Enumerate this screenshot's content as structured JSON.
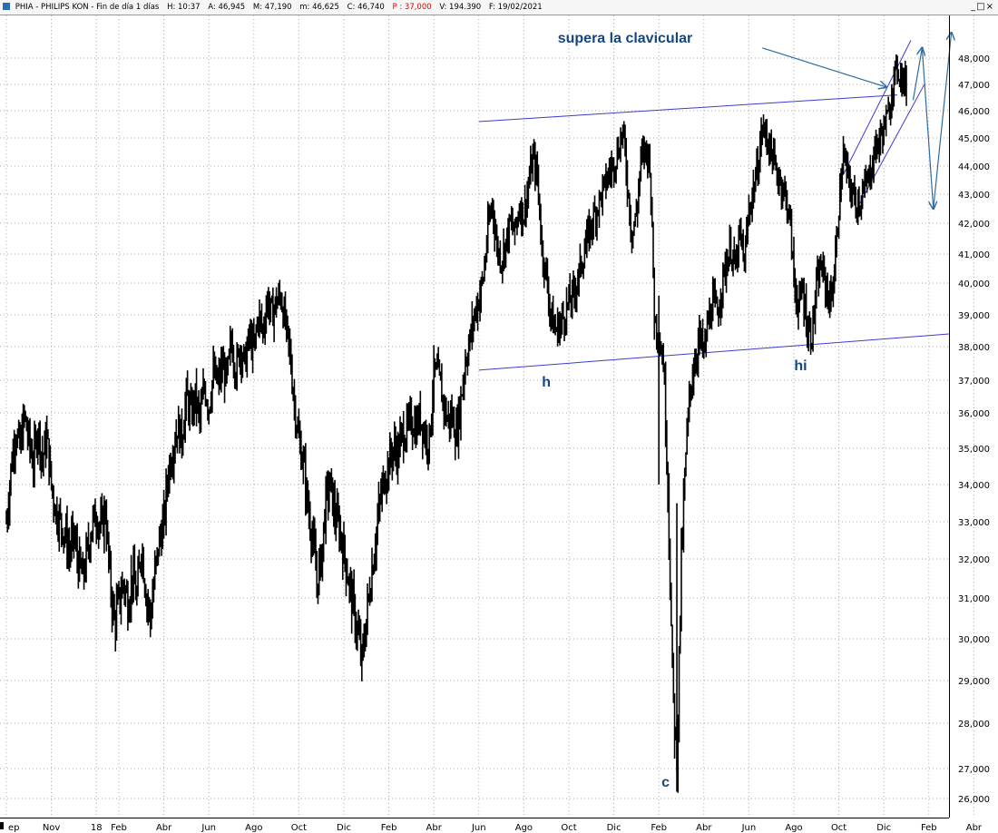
{
  "header": {
    "name": "PHIA - PHILIPS KON - Fin de día 1 días",
    "high": "H: 10:37",
    "open": "A: 46,945",
    "max": "M: 47,190",
    "min": "m: 46,625",
    "close": "C: 46,740",
    "p": "P : 37,000",
    "volume": "V: 194.390",
    "date": "F: 19/02/2021",
    "controls": "_□×"
  },
  "chart_data": {
    "type": "candlestick",
    "title": "",
    "xlabel": "",
    "ylabel": "",
    "ylim": [
      26,
      49
    ],
    "y_ticks": [
      "26,000",
      "27,000",
      "28,000",
      "29,000",
      "30,000",
      "31,000",
      "32,000",
      "33,000",
      "34,000",
      "35,000",
      "36,000",
      "37,000",
      "38,000",
      "39,000",
      "40,000",
      "41,000",
      "42,000",
      "43,000",
      "44,000",
      "45,000",
      "46,000",
      "47,000",
      "48,000"
    ],
    "x_ticks": [
      "Sep",
      "Nov",
      "18",
      "Feb",
      "Abr",
      "Jun",
      "Ago",
      "Oct",
      "Dic",
      "Feb",
      "Abr",
      "Jun",
      "Ago",
      "Oct",
      "Dic",
      "Feb",
      "Abr",
      "Jun",
      "Ago",
      "Oct",
      "Dic",
      "Feb",
      "Abr"
    ],
    "x_label_texts": [
      "ep",
      "Nov",
      "18",
      "Feb",
      "Abr",
      "Jun",
      "Ago",
      "Oct",
      "Dic",
      "Feb",
      "Abr",
      "Jun",
      "Ago",
      "Oct",
      "Dic",
      "Feb",
      "Abr",
      "Jun",
      "Ago",
      "Oct",
      "Dic",
      "Feb",
      "Abr"
    ],
    "x_tick_index": [
      0,
      2,
      4,
      5,
      7,
      9,
      11,
      13,
      15,
      17,
      19,
      21,
      23,
      25,
      27,
      29,
      31,
      33,
      35,
      37,
      39,
      41,
      43
    ],
    "months_span": 44,
    "grid": true,
    "series": [
      {
        "values": [
          [
            0.0,
            33.0
          ],
          [
            0.2,
            34.4
          ],
          [
            0.4,
            35.5
          ],
          [
            0.6,
            35.0
          ],
          [
            0.8,
            35.9
          ],
          [
            1.0,
            35.2
          ],
          [
            1.2,
            34.6
          ],
          [
            1.4,
            35.6
          ],
          [
            1.6,
            34.7
          ],
          [
            1.8,
            35.3
          ],
          [
            2.0,
            34.0
          ],
          [
            2.2,
            33.3
          ],
          [
            2.4,
            33.0
          ],
          [
            2.6,
            32.7
          ],
          [
            2.8,
            32.2
          ],
          [
            3.0,
            32.6
          ],
          [
            3.2,
            31.9
          ],
          [
            3.4,
            31.5
          ],
          [
            3.6,
            32.2
          ],
          [
            3.8,
            32.9
          ],
          [
            4.0,
            33.2
          ],
          [
            4.2,
            32.8
          ],
          [
            4.4,
            33.3
          ],
          [
            4.6,
            31.5
          ],
          [
            4.8,
            30.4
          ],
          [
            5.0,
            30.9
          ],
          [
            5.2,
            31.4
          ],
          [
            5.4,
            30.9
          ],
          [
            5.6,
            31.6
          ],
          [
            5.8,
            31.0
          ],
          [
            6.0,
            32.4
          ],
          [
            6.2,
            31.2
          ],
          [
            6.4,
            30.5
          ],
          [
            6.6,
            31.6
          ],
          [
            6.8,
            32.5
          ],
          [
            7.0,
            33.0
          ],
          [
            7.2,
            34.4
          ],
          [
            7.4,
            35.0
          ],
          [
            7.6,
            35.6
          ],
          [
            7.8,
            35.3
          ],
          [
            8.0,
            36.5
          ],
          [
            8.2,
            36.0
          ],
          [
            8.4,
            36.5
          ],
          [
            8.6,
            35.8
          ],
          [
            8.8,
            36.8
          ],
          [
            9.0,
            36.2
          ],
          [
            9.2,
            37.2
          ],
          [
            9.4,
            36.9
          ],
          [
            9.6,
            37.4
          ],
          [
            9.8,
            37.0
          ],
          [
            10.0,
            38.2
          ],
          [
            10.2,
            37.3
          ],
          [
            10.4,
            38.0
          ],
          [
            10.6,
            37.5
          ],
          [
            10.8,
            38.3
          ],
          [
            11.0,
            37.9
          ],
          [
            11.2,
            39.0
          ],
          [
            11.4,
            38.5
          ],
          [
            11.6,
            39.5
          ],
          [
            11.8,
            39.0
          ],
          [
            12.0,
            39.4
          ],
          [
            12.2,
            39.6
          ],
          [
            12.4,
            38.7
          ],
          [
            12.6,
            37.8
          ],
          [
            12.8,
            36.3
          ],
          [
            13.0,
            35.2
          ],
          [
            13.2,
            34.6
          ],
          [
            13.4,
            33.4
          ],
          [
            13.6,
            32.6
          ],
          [
            13.8,
            31.4
          ],
          [
            14.0,
            32.0
          ],
          [
            14.2,
            33.6
          ],
          [
            14.4,
            34.0
          ],
          [
            14.6,
            33.2
          ],
          [
            14.8,
            32.8
          ],
          [
            15.0,
            32.2
          ],
          [
            15.2,
            31.5
          ],
          [
            15.4,
            30.8
          ],
          [
            15.6,
            30.2
          ],
          [
            15.8,
            29.4
          ],
          [
            16.0,
            30.5
          ],
          [
            16.2,
            31.5
          ],
          [
            16.4,
            32.5
          ],
          [
            16.6,
            33.5
          ],
          [
            16.8,
            34.2
          ],
          [
            17.0,
            34.6
          ],
          [
            17.2,
            35.0
          ],
          [
            17.4,
            34.9
          ],
          [
            17.6,
            35.4
          ],
          [
            17.8,
            35.5
          ],
          [
            18.0,
            35.8
          ],
          [
            18.2,
            35.6
          ],
          [
            18.4,
            35.9
          ],
          [
            18.6,
            35.4
          ],
          [
            18.8,
            35.2
          ],
          [
            19.0,
            37.2
          ],
          [
            19.2,
            37.1
          ],
          [
            19.4,
            36.4
          ],
          [
            19.6,
            35.8
          ],
          [
            19.8,
            35.9
          ],
          [
            20.0,
            35.4
          ],
          [
            20.2,
            36.4
          ],
          [
            20.4,
            37.6
          ],
          [
            20.6,
            38.2
          ],
          [
            20.8,
            39.0
          ],
          [
            21.0,
            39.5
          ],
          [
            21.2,
            40.2
          ],
          [
            21.4,
            41.8
          ],
          [
            21.6,
            42.7
          ],
          [
            21.8,
            41.2
          ],
          [
            22.0,
            40.8
          ],
          [
            22.2,
            41.4
          ],
          [
            22.4,
            42.0
          ],
          [
            22.6,
            41.7
          ],
          [
            22.8,
            42.6
          ],
          [
            23.0,
            42.3
          ],
          [
            23.2,
            43.3
          ],
          [
            23.4,
            44.3
          ],
          [
            23.6,
            43.6
          ],
          [
            23.8,
            41.2
          ],
          [
            24.0,
            40.2
          ],
          [
            24.2,
            39.0
          ],
          [
            24.4,
            38.5
          ],
          [
            24.6,
            38.7
          ],
          [
            24.8,
            39.0
          ],
          [
            25.0,
            39.4
          ],
          [
            25.2,
            39.6
          ],
          [
            25.4,
            40.2
          ],
          [
            25.6,
            40.8
          ],
          [
            25.8,
            41.4
          ],
          [
            26.0,
            42.0
          ],
          [
            26.2,
            42.4
          ],
          [
            26.4,
            42.9
          ],
          [
            26.6,
            43.3
          ],
          [
            26.8,
            43.8
          ],
          [
            27.0,
            44.1
          ],
          [
            27.2,
            44.6
          ],
          [
            27.4,
            45.3
          ],
          [
            27.6,
            43.4
          ],
          [
            27.8,
            41.6
          ],
          [
            28.0,
            42.3
          ],
          [
            28.2,
            44.2
          ],
          [
            28.4,
            44.6
          ],
          [
            28.6,
            44.2
          ],
          [
            28.8,
            39.0
          ],
          [
            29.0,
            38.3
          ],
          [
            29.2,
            37.6
          ],
          [
            29.4,
            34.0
          ],
          [
            29.6,
            29.0
          ],
          [
            29.8,
            27.0
          ],
          [
            30.0,
            32.0
          ],
          [
            30.2,
            34.8
          ],
          [
            30.4,
            36.8
          ],
          [
            30.6,
            37.6
          ],
          [
            30.8,
            38.3
          ],
          [
            31.0,
            37.8
          ],
          [
            31.2,
            38.8
          ],
          [
            31.4,
            39.4
          ],
          [
            31.6,
            39.0
          ],
          [
            31.8,
            40.0
          ],
          [
            32.0,
            40.7
          ],
          [
            32.2,
            41.2
          ],
          [
            32.4,
            40.5
          ],
          [
            32.6,
            41.6
          ],
          [
            32.8,
            40.7
          ],
          [
            33.0,
            42.4
          ],
          [
            33.2,
            43.2
          ],
          [
            33.4,
            44.0
          ],
          [
            33.6,
            45.4
          ],
          [
            33.8,
            45.0
          ],
          [
            34.0,
            44.5
          ],
          [
            34.2,
            43.8
          ],
          [
            34.4,
            43.5
          ],
          [
            34.6,
            43.0
          ],
          [
            34.8,
            42.3
          ],
          [
            35.0,
            40.2
          ],
          [
            35.2,
            39.2
          ],
          [
            35.4,
            39.8
          ],
          [
            35.6,
            38.6
          ],
          [
            35.8,
            38.4
          ],
          [
            36.0,
            39.8
          ],
          [
            36.2,
            40.6
          ],
          [
            36.4,
            40.0
          ],
          [
            36.6,
            39.4
          ],
          [
            36.8,
            40.3
          ],
          [
            37.0,
            42.6
          ],
          [
            37.2,
            44.4
          ],
          [
            37.4,
            43.6
          ],
          [
            37.6,
            43.0
          ],
          [
            37.8,
            42.7
          ],
          [
            38.0,
            42.9
          ],
          [
            38.2,
            43.3
          ],
          [
            38.4,
            43.8
          ],
          [
            38.6,
            44.6
          ],
          [
            38.8,
            44.9
          ],
          [
            39.0,
            45.4
          ],
          [
            39.2,
            45.8
          ],
          [
            39.4,
            47.1
          ],
          [
            39.6,
            47.6
          ],
          [
            39.8,
            47.3
          ],
          [
            40.0,
            46.9
          ]
        ]
      }
    ],
    "trendlines": [
      {
        "from": [
          21.0,
          45.6
        ],
        "to": [
          39.6,
          46.6
        ]
      },
      {
        "from": [
          21.0,
          37.3
        ],
        "to": [
          41.9,
          38.4
        ]
      },
      {
        "from": [
          37.2,
          43.7
        ],
        "to": [
          40.2,
          48.7
        ]
      },
      {
        "from": [
          37.8,
          42.5
        ],
        "to": [
          40.8,
          47.0
        ]
      }
    ],
    "annotations": [
      {
        "text": "supera la clavicular",
        "x": 27.5,
        "y": 48.6,
        "size": 16
      },
      {
        "text": "h",
        "x": 24.0,
        "y": 36.8,
        "size": 16
      },
      {
        "text": "c",
        "x": 29.3,
        "y": 26.4,
        "size": 16
      },
      {
        "text": "hi",
        "x": 35.3,
        "y": 37.3,
        "size": 16
      }
    ],
    "arrows": [
      {
        "from": [
          33.6,
          48.4
        ],
        "to": [
          39.1,
          46.9
        ]
      },
      {
        "from": [
          40.3,
          46.4
        ],
        "to": [
          40.7,
          48.4
        ]
      },
      {
        "from": [
          40.7,
          48.4
        ],
        "to": [
          41.2,
          42.5
        ]
      },
      {
        "from": [
          41.2,
          42.5
        ],
        "to": [
          42.0,
          49.1
        ]
      }
    ]
  }
}
